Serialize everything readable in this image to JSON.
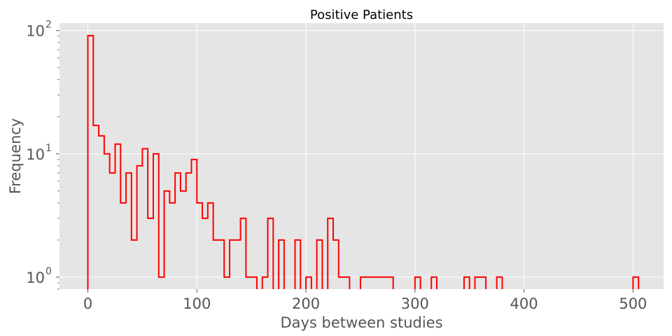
{
  "chart_data": {
    "type": "histogram-step",
    "title": "Positive Patients",
    "xlabel": "Days between studies",
    "ylabel": "Frequency",
    "xlim": [
      -26,
      528
    ],
    "ylim": [
      0.8,
      115
    ],
    "yscale": "log",
    "grid": true,
    "x_ticks": [
      {
        "value": 0,
        "label": "0"
      },
      {
        "value": 100,
        "label": "100"
      },
      {
        "value": 200,
        "label": "200"
      },
      {
        "value": 300,
        "label": "300"
      },
      {
        "value": 400,
        "label": "400"
      },
      {
        "value": 500,
        "label": "500"
      }
    ],
    "y_ticks": [
      {
        "value": 1,
        "base": "10",
        "exp": "0"
      },
      {
        "value": 10,
        "base": "10",
        "exp": "1"
      },
      {
        "value": 100,
        "base": "10",
        "exp": "2"
      }
    ],
    "series": [
      {
        "color": "#ff0000",
        "bin_width": 5,
        "bin_start": 0,
        "values": [
          91,
          17,
          14,
          10,
          7,
          12,
          4,
          7,
          2,
          8,
          11,
          3,
          10,
          1,
          5,
          4,
          7,
          5,
          7,
          9,
          4,
          3,
          4,
          2,
          2,
          1,
          2,
          2,
          3,
          1,
          1,
          0,
          1,
          3,
          0,
          2,
          0,
          0,
          2,
          0,
          1,
          0,
          2,
          0,
          3,
          2,
          1,
          1,
          0,
          0,
          1,
          1,
          1,
          1,
          1,
          1,
          0,
          0,
          0,
          0,
          1,
          0,
          0,
          1,
          0,
          0,
          0,
          0,
          0,
          1,
          0,
          1,
          1,
          0,
          0,
          1,
          0,
          0,
          0,
          0,
          0,
          0,
          0,
          0,
          0,
          0,
          0,
          0,
          0,
          0,
          0,
          0,
          0,
          0,
          0,
          0,
          0,
          0,
          0,
          0,
          1
        ]
      }
    ]
  }
}
